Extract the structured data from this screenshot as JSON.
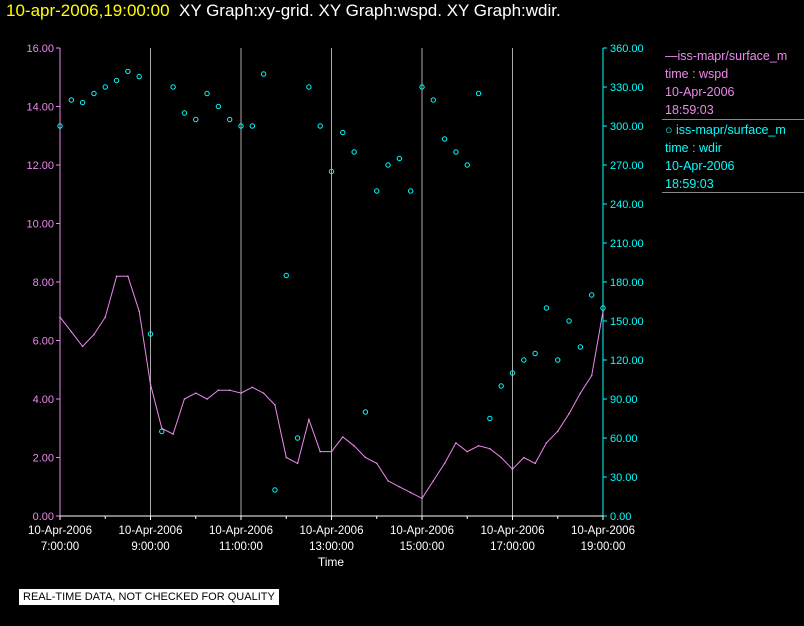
{
  "header": {
    "timestamp": "10-apr-2006,19:00:00",
    "graphs": "XY Graph:xy-grid.  XY Graph:wspd.  XY Graph:wdir."
  },
  "legend": {
    "wspd": {
      "line1": "—iss-mapr/surface_m",
      "line2": "time : wspd",
      "line3": "10-Apr-2006",
      "line4": "18:59:03"
    },
    "wdir": {
      "line1": "○ iss-mapr/surface_m",
      "line2": "time : wdir",
      "line3": "10-Apr-2006",
      "line4": "18:59:03"
    }
  },
  "footer": {
    "note": "REAL-TIME DATA, NOT CHECKED FOR QUALITY"
  },
  "colors": {
    "wspd": "#ee88ee",
    "wdir": "#00ffff",
    "grid": "#aaaaaa",
    "axis_text": "#ffffff",
    "left_axis": "#ee88ee",
    "right_axis": "#00ffff"
  },
  "chart_data": {
    "type": "line",
    "xlabel": "Time",
    "xlim": [
      7.0,
      19.0
    ],
    "x_ticks": [
      {
        "value": 7,
        "line1": "10-Apr-2006",
        "line2": "7:00:00"
      },
      {
        "value": 9,
        "line1": "10-Apr-2006",
        "line2": "9:00:00"
      },
      {
        "value": 11,
        "line1": "10-Apr-2006",
        "line2": "11:00:00"
      },
      {
        "value": 13,
        "line1": "10-Apr-2006",
        "line2": "13:00:00"
      },
      {
        "value": 15,
        "line1": "10-Apr-2006",
        "line2": "15:00:00"
      },
      {
        "value": 17,
        "line1": "10-Apr-2006",
        "line2": "17:00:00"
      },
      {
        "value": 19,
        "line1": "10-Apr-2006",
        "line2": "19:00:00"
      }
    ],
    "y_left": {
      "ylim": [
        0,
        16
      ],
      "ticks": [
        "0.00",
        "2.00",
        "4.00",
        "6.00",
        "8.00",
        "10.00",
        "12.00",
        "14.00",
        "16.00"
      ]
    },
    "y_right": {
      "ylim": [
        0,
        360
      ],
      "ticks": [
        "0.00",
        "30.00",
        "60.00",
        "90.00",
        "120.00",
        "150.00",
        "180.00",
        "210.00",
        "240.00",
        "270.00",
        "300.00",
        "330.00",
        "360.00"
      ]
    },
    "grid": "vertical",
    "series": [
      {
        "name": "wspd",
        "kind": "line",
        "axis": "left",
        "x": [
          7.0,
          7.25,
          7.5,
          7.75,
          8.0,
          8.25,
          8.5,
          8.75,
          9.0,
          9.25,
          9.5,
          9.75,
          10.0,
          10.25,
          10.5,
          10.75,
          11.0,
          11.25,
          11.5,
          11.75,
          12.0,
          12.25,
          12.5,
          12.75,
          13.0,
          13.25,
          13.5,
          13.75,
          14.0,
          14.25,
          14.5,
          14.75,
          15.0,
          15.25,
          15.5,
          15.75,
          16.0,
          16.25,
          16.5,
          16.75,
          17.0,
          17.25,
          17.5,
          17.75,
          18.0,
          18.25,
          18.5,
          18.75,
          19.0
        ],
        "y": [
          6.8,
          6.3,
          5.8,
          6.2,
          6.8,
          8.2,
          8.2,
          7.0,
          4.5,
          3.0,
          2.8,
          4.0,
          4.2,
          4.0,
          4.3,
          4.3,
          4.2,
          4.4,
          4.2,
          3.8,
          2.0,
          1.8,
          3.3,
          2.2,
          2.2,
          2.7,
          2.4,
          2.0,
          1.8,
          1.2,
          1.0,
          0.8,
          0.6,
          1.2,
          1.8,
          2.5,
          2.2,
          2.4,
          2.3,
          2.0,
          1.6,
          2.0,
          1.8,
          2.5,
          2.9,
          3.5,
          4.2,
          4.8,
          7.0
        ]
      },
      {
        "name": "wdir",
        "kind": "scatter",
        "axis": "right",
        "x": [
          7.0,
          7.25,
          7.5,
          7.75,
          8.0,
          8.25,
          8.5,
          8.75,
          9.0,
          9.25,
          9.5,
          9.75,
          10.0,
          10.25,
          10.5,
          10.75,
          11.0,
          11.25,
          11.5,
          11.75,
          12.0,
          12.25,
          12.5,
          12.75,
          13.0,
          13.25,
          13.5,
          13.75,
          14.0,
          14.25,
          14.5,
          14.75,
          15.0,
          15.25,
          15.5,
          15.75,
          16.0,
          16.25,
          16.5,
          16.75,
          17.0,
          17.25,
          17.5,
          17.75,
          18.0,
          18.25,
          18.5,
          18.75,
          19.0
        ],
        "y": [
          300,
          320,
          318,
          325,
          330,
          335,
          342,
          338,
          140,
          65,
          330,
          310,
          305,
          325,
          315,
          305,
          300,
          300,
          340,
          20,
          185,
          60,
          330,
          300,
          265,
          295,
          280,
          80,
          250,
          270,
          275,
          250,
          330,
          320,
          290,
          280,
          270,
          325,
          75,
          100,
          110,
          120,
          125,
          160,
          120,
          150,
          130,
          170,
          160
        ]
      }
    ]
  }
}
